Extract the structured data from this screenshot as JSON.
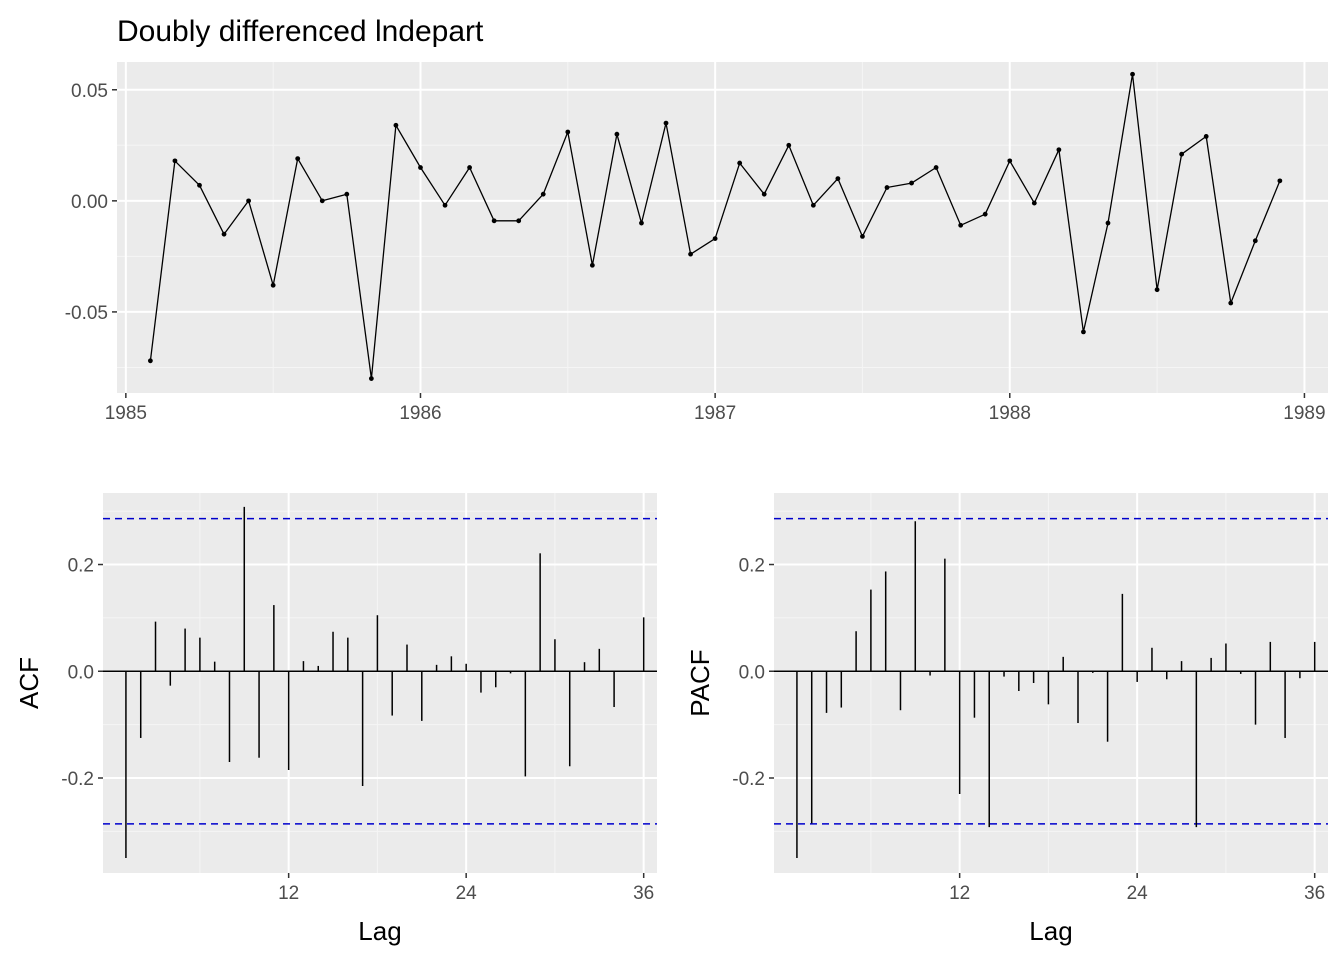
{
  "chart_data": [
    {
      "type": "line",
      "title": "Doubly differenced lndepart",
      "xlabel": "",
      "ylabel": "",
      "xlim": [
        1984.97,
        1989.08
      ],
      "ylim": [
        -0.0865,
        0.0625
      ],
      "xticks": [
        1985,
        1986,
        1987,
        1988,
        1989
      ],
      "xtick_labels": [
        "1985",
        "1986",
        "1987",
        "1988",
        "1989"
      ],
      "yticks": [
        -0.05,
        0.0,
        0.05
      ],
      "ytick_labels": [
        "-0.05",
        "0.00",
        "0.05"
      ],
      "grid": true,
      "x_start": 1985.0833,
      "x_step": 0.083333,
      "values": [
        -0.072,
        0.018,
        0.007,
        -0.015,
        0.0,
        -0.038,
        0.019,
        0.0,
        0.003,
        -0.08,
        0.034,
        0.015,
        -0.002,
        0.015,
        -0.009,
        -0.009,
        0.003,
        0.031,
        -0.029,
        0.03,
        -0.01,
        0.035,
        -0.024,
        -0.017,
        0.017,
        0.003,
        0.025,
        -0.002,
        0.01,
        -0.016,
        0.006,
        0.008,
        0.015,
        -0.011,
        -0.006,
        0.018,
        -0.001,
        0.023,
        -0.059,
        -0.01,
        0.057,
        -0.04,
        0.021,
        0.029,
        -0.046,
        -0.018,
        0.009
      ]
    },
    {
      "type": "bar",
      "xlabel": "Lag",
      "ylabel": "ACF",
      "xlim": [
        -0.55,
        36.9
      ],
      "ylim": [
        -0.378,
        0.334
      ],
      "xticks": [
        12,
        24,
        36
      ],
      "xtick_labels": [
        "12",
        "24",
        "36"
      ],
      "yticks": [
        -0.2,
        0.0,
        0.2
      ],
      "ytick_labels": [
        "-0.2",
        "0.0",
        "0.2"
      ],
      "grid": true,
      "ci": 0.286,
      "lags": [
        1,
        2,
        3,
        4,
        5,
        6,
        7,
        8,
        9,
        10,
        11,
        12,
        13,
        14,
        15,
        16,
        17,
        18,
        19,
        20,
        21,
        22,
        23,
        24,
        25,
        26,
        27,
        28,
        29,
        30,
        31,
        32,
        33,
        34,
        35,
        36
      ],
      "values": [
        -0.35,
        -0.125,
        0.093,
        -0.027,
        0.08,
        0.063,
        0.018,
        -0.17,
        0.308,
        -0.162,
        0.124,
        -0.185,
        0.019,
        0.01,
        0.074,
        0.063,
        -0.215,
        0.105,
        -0.083,
        0.05,
        -0.093,
        0.012,
        0.028,
        0.014,
        -0.04,
        -0.03,
        -0.004,
        -0.197,
        0.221,
        0.06,
        -0.178,
        0.017,
        0.042,
        -0.067,
        0.0,
        0.101
      ]
    },
    {
      "type": "bar",
      "xlabel": "Lag",
      "ylabel": "PACF",
      "xlim": [
        -0.55,
        36.9
      ],
      "ylim": [
        -0.378,
        0.334
      ],
      "xticks": [
        12,
        24,
        36
      ],
      "xtick_labels": [
        "12",
        "24",
        "36"
      ],
      "yticks": [
        -0.2,
        0.0,
        0.2
      ],
      "ytick_labels": [
        "-0.2",
        "0.0",
        "0.2"
      ],
      "grid": true,
      "ci": 0.286,
      "lags": [
        1,
        2,
        3,
        4,
        5,
        6,
        7,
        8,
        9,
        10,
        11,
        12,
        13,
        14,
        15,
        16,
        17,
        18,
        19,
        20,
        21,
        22,
        23,
        24,
        25,
        26,
        27,
        28,
        29,
        30,
        31,
        32,
        33,
        34,
        35,
        36
      ],
      "values": [
        -0.35,
        -0.285,
        -0.078,
        -0.068,
        0.075,
        0.153,
        0.187,
        -0.073,
        0.281,
        -0.008,
        0.211,
        -0.23,
        -0.087,
        -0.292,
        -0.01,
        -0.037,
        -0.022,
        -0.062,
        0.027,
        -0.097,
        -0.003,
        -0.132,
        0.145,
        -0.02,
        0.044,
        -0.015,
        0.019,
        -0.292,
        0.025,
        0.052,
        -0.005,
        -0.1,
        0.055,
        -0.125,
        -0.013,
        0.055
      ]
    }
  ],
  "colors": {
    "panel_background": "#ebebeb",
    "grid_major": "#ffffff",
    "grid_minor": "#f5f5f5",
    "series_line": "#000000",
    "ci_line": "#0000cc",
    "tick_text": "#4d4d4d",
    "title_text": "#000000"
  }
}
